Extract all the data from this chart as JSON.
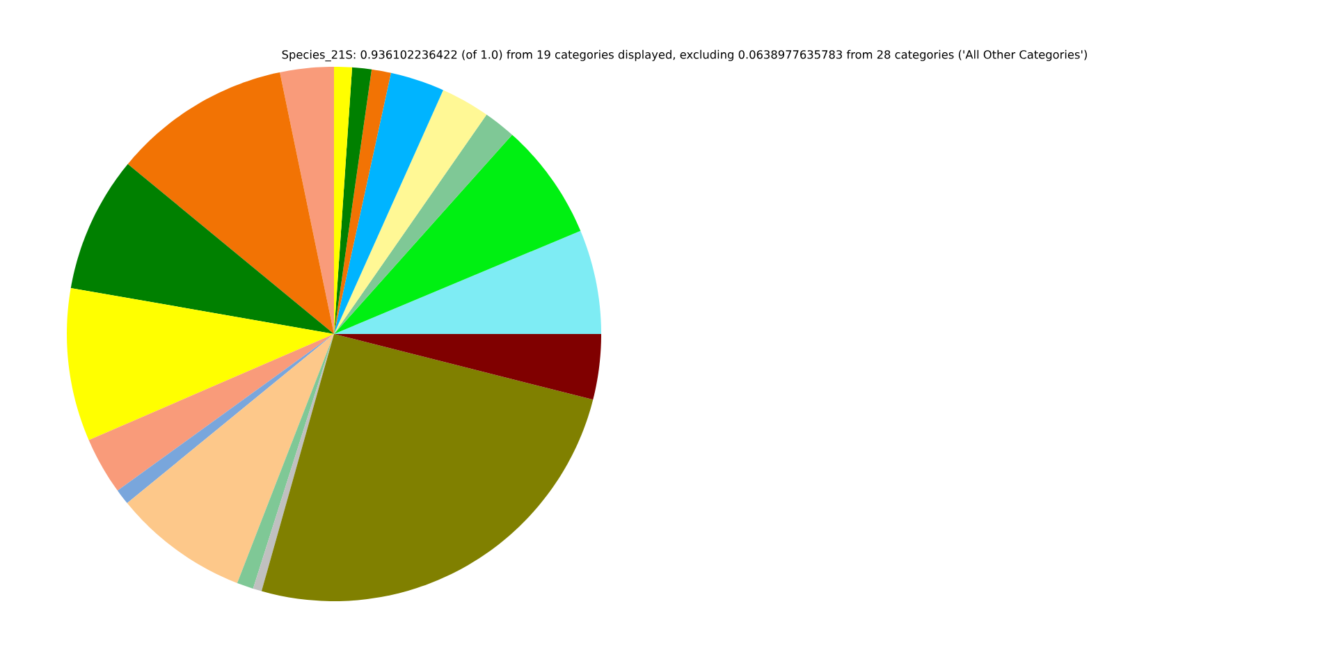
{
  "chart_data": {
    "type": "pie",
    "title": "Species_21S: 0.936102236422 (of 1.0) from 19 categories displayed, excluding 0.0638977635783 from 28 categories ('All Other Categories')",
    "categories": [
      null,
      null,
      null,
      null,
      null,
      null,
      null,
      null,
      null,
      null,
      null,
      null,
      null,
      null,
      null,
      null,
      null,
      null,
      null
    ],
    "values": [
      6.31,
      7.08,
      1.94,
      2.97,
      3.28,
      1.17,
      1.17,
      1.08,
      3.25,
      10.78,
      8.22,
      9.25,
      3.47,
      0.94,
      8.19,
      1.0,
      0.53,
      25.42,
      3.95
    ],
    "colors": [
      "#7eecf4",
      "#00f012",
      "#7fc896",
      "#fff895",
      "#00b4ff",
      "#f27304",
      "#008000",
      "#ffff00",
      "#f99b7a",
      "#f27304",
      "#008000",
      "#ffff00",
      "#f99b7a",
      "#79a6dc",
      "#fdc88a",
      "#7fc896",
      "#c0c0c0",
      "#808000",
      "#800000"
    ]
  }
}
